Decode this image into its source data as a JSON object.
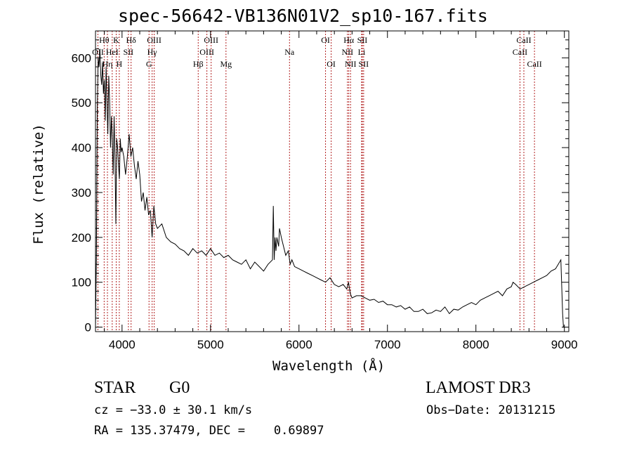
{
  "chart_data": {
    "type": "line",
    "title": "spec-56642-VB136N01V2_sp10-167.fits",
    "xlabel": "Wavelength (Å)",
    "ylabel": "Flux (relative)",
    "xlim": [
      3700,
      9050
    ],
    "ylim": [
      -10,
      660
    ],
    "xticks": [
      4000,
      5000,
      6000,
      7000,
      8000,
      9000
    ],
    "yticks": [
      0,
      100,
      200,
      300,
      400,
      500,
      600
    ],
    "grid": false,
    "series": [
      {
        "name": "flux",
        "x": [
          3700,
          3710,
          3720,
          3730,
          3740,
          3750,
          3760,
          3770,
          3780,
          3790,
          3800,
          3810,
          3820,
          3830,
          3840,
          3850,
          3860,
          3870,
          3880,
          3890,
          3900,
          3910,
          3920,
          3930,
          3940,
          3950,
          3960,
          3970,
          3980,
          3990,
          4000,
          4020,
          4040,
          4060,
          4080,
          4100,
          4120,
          4140,
          4160,
          4180,
          4200,
          4220,
          4240,
          4260,
          4280,
          4300,
          4320,
          4340,
          4360,
          4380,
          4400,
          4450,
          4500,
          4550,
          4600,
          4650,
          4700,
          4750,
          4800,
          4850,
          4900,
          4950,
          5000,
          5050,
          5100,
          5150,
          5200,
          5250,
          5300,
          5350,
          5400,
          5450,
          5500,
          5550,
          5600,
          5650,
          5700,
          5710,
          5720,
          5730,
          5740,
          5750,
          5760,
          5770,
          5780,
          5800,
          5850,
          5880,
          5900,
          5920,
          5950,
          6000,
          6050,
          6100,
          6150,
          6200,
          6250,
          6300,
          6350,
          6400,
          6450,
          6500,
          6540,
          6560,
          6580,
          6600,
          6650,
          6700,
          6750,
          6800,
          6850,
          6900,
          6950,
          7000,
          7050,
          7100,
          7150,
          7200,
          7250,
          7300,
          7350,
          7400,
          7450,
          7500,
          7550,
          7600,
          7650,
          7700,
          7750,
          7800,
          7850,
          7900,
          7950,
          8000,
          8050,
          8100,
          8150,
          8200,
          8250,
          8300,
          8350,
          8400,
          8420,
          8450,
          8500,
          8550,
          8600,
          8650,
          8700,
          8750,
          8800,
          8850,
          8900,
          8930,
          8960,
          8980,
          8990,
          9000
        ],
        "y": [
          0,
          160,
          480,
          600,
          580,
          620,
          560,
          540,
          590,
          520,
          550,
          460,
          580,
          500,
          430,
          560,
          500,
          400,
          470,
          420,
          340,
          470,
          380,
          230,
          420,
          400,
          360,
          330,
          420,
          390,
          400,
          380,
          340,
          380,
          430,
          380,
          400,
          360,
          330,
          370,
          340,
          280,
          300,
          260,
          290,
          250,
          260,
          200,
          270,
          230,
          220,
          230,
          200,
          190,
          185,
          175,
          170,
          160,
          175,
          165,
          170,
          160,
          175,
          160,
          165,
          155,
          160,
          150,
          145,
          140,
          150,
          130,
          145,
          135,
          125,
          140,
          150,
          270,
          150,
          200,
          170,
          200,
          190,
          180,
          220,
          200,
          160,
          170,
          140,
          150,
          135,
          130,
          125,
          120,
          115,
          110,
          105,
          100,
          110,
          95,
          90,
          95,
          85,
          100,
          75,
          65,
          70,
          70,
          65,
          60,
          62,
          55,
          58,
          50,
          50,
          45,
          48,
          40,
          45,
          35,
          35,
          40,
          30,
          32,
          38,
          35,
          45,
          30,
          40,
          38,
          45,
          50,
          55,
          50,
          60,
          65,
          70,
          75,
          80,
          70,
          85,
          90,
          100,
          95,
          85,
          90,
          95,
          100,
          105,
          110,
          115,
          125,
          130,
          140,
          150,
          30,
          0,
          0
        ]
      }
    ],
    "line_markers": [
      {
        "label": "Hθ",
        "x": 3798,
        "row": 1
      },
      {
        "label": "OII",
        "x": 3727,
        "row": 2
      },
      {
        "label": "Hη",
        "x": 3835,
        "row": 3
      },
      {
        "label": "K",
        "x": 3934,
        "row": 1
      },
      {
        "label": "HeI",
        "x": 3889,
        "row": 2
      },
      {
        "label": "H",
        "x": 3969,
        "row": 3
      },
      {
        "label": "Hδ",
        "x": 4102,
        "row": 1
      },
      {
        "label": "SII",
        "x": 4072,
        "row": 2
      },
      {
        "label": "OIII",
        "x": 4363,
        "row": 1
      },
      {
        "label": "Hγ",
        "x": 4340,
        "row": 2
      },
      {
        "label": "G",
        "x": 4305,
        "row": 3
      },
      {
        "label": "Hβ",
        "x": 4861,
        "row": 3
      },
      {
        "label": "OIII",
        "x": 5007,
        "row": 1
      },
      {
        "label": "OIII",
        "x": 4959,
        "row": 2
      },
      {
        "label": "Mg",
        "x": 5175,
        "row": 3
      },
      {
        "label": "Na",
        "x": 5893,
        "row": 2
      },
      {
        "label": "OI",
        "x": 6300,
        "row": 1
      },
      {
        "label": "OI",
        "x": 6364,
        "row": 3
      },
      {
        "label": "Hα",
        "x": 6563,
        "row": 1
      },
      {
        "label": "NII",
        "x": 6548,
        "row": 2
      },
      {
        "label": "NII",
        "x": 6583,
        "row": 3
      },
      {
        "label": "SII",
        "x": 6716,
        "row": 1
      },
      {
        "label": "Li",
        "x": 6708,
        "row": 2
      },
      {
        "label": "SII",
        "x": 6731,
        "row": 3
      },
      {
        "label": "CaII",
        "x": 8542,
        "row": 1
      },
      {
        "label": "CaII",
        "x": 8498,
        "row": 2
      },
      {
        "label": "CaII",
        "x": 8662,
        "row": 3
      }
    ]
  },
  "info": {
    "object_class": "STAR",
    "subclass": "G0",
    "survey": "LAMOST DR3",
    "cz": "cz = −33.0 ± 30.1 km/s",
    "obs_date": "Obs−Date: 20131215",
    "coords": "RA = 135.37479, DEC =    0.69897"
  },
  "colors": {
    "marker": "#b22222",
    "spectrum": "#000000"
  }
}
